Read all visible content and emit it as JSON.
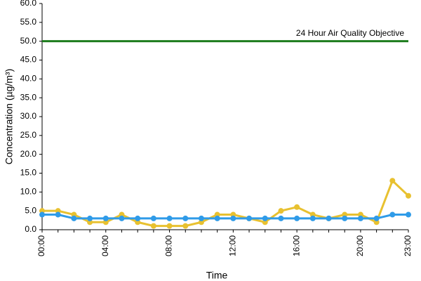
{
  "chart_data": {
    "type": "line",
    "xlabel": "Time",
    "ylabel": "Concentration (µg/m³)",
    "categories": [
      "00:00",
      null,
      null,
      null,
      "04:00",
      null,
      null,
      null,
      "08:00",
      null,
      null,
      null,
      "12:00",
      null,
      null,
      null,
      "16:00",
      null,
      null,
      null,
      "20:00",
      null,
      null,
      "23:00"
    ],
    "series": [
      {
        "color": "#e8c130",
        "values": [
          5,
          5,
          4,
          2,
          2,
          4,
          2,
          1,
          1,
          1,
          2,
          4,
          4,
          3,
          2,
          5,
          6,
          4,
          3,
          4,
          4,
          2,
          13,
          9
        ]
      },
      {
        "color": "#2f9be8",
        "values": [
          4,
          4,
          3,
          3,
          3,
          3,
          3,
          3,
          3,
          3,
          3,
          3,
          3,
          3,
          3,
          3,
          3,
          3,
          3,
          3,
          3,
          3,
          4,
          4
        ]
      }
    ],
    "objective": {
      "value": 50,
      "label": "24 Hour Air Quality Objective",
      "color": "#1e7d1e"
    },
    "ylim": [
      0,
      60
    ],
    "yticks": [
      {
        "value": 0,
        "label": "0.0"
      },
      {
        "value": 5,
        "label": "5.0"
      },
      {
        "value": 10,
        "label": "10.0"
      },
      {
        "value": 15,
        "label": "15.0"
      },
      {
        "value": 20,
        "label": "20.0"
      },
      {
        "value": 25,
        "label": "25.0"
      },
      {
        "value": 30,
        "label": "30.0"
      },
      {
        "value": 35,
        "label": "35.0"
      },
      {
        "value": 40,
        "label": "40.0"
      },
      {
        "value": 45,
        "label": "45.0"
      },
      {
        "value": 50,
        "label": "50.0"
      },
      {
        "value": 55,
        "label": "55.0"
      },
      {
        "value": 60,
        "label": "60.0"
      }
    ],
    "grid": false
  }
}
